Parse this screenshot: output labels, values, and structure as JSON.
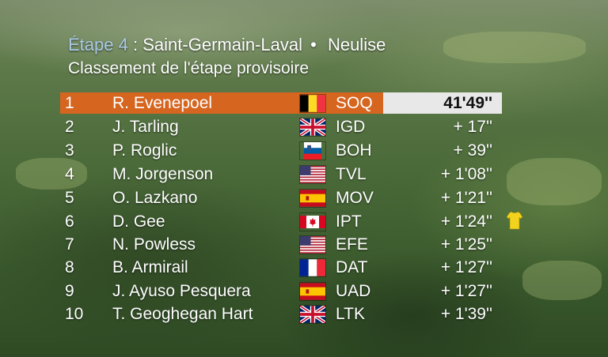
{
  "header": {
    "stage_label": "Étape",
    "stage_number": "4",
    "stage_colon": ":",
    "start": "Saint-Germain-Laval",
    "separator": "•",
    "finish": "Neulise",
    "subtitle": "Classement de l'étape provisoire"
  },
  "standings": [
    {
      "rank": "1",
      "name": "R. Evenepoel",
      "flag": "belgium-flag",
      "team": "SOQ",
      "time": "41'49''",
      "leader": true
    },
    {
      "rank": "2",
      "name": "J. Tarling",
      "flag": "uk-flag",
      "team": "IGD",
      "time": "+ 17''"
    },
    {
      "rank": "3",
      "name": "P. Roglic",
      "flag": "slovenia-flag",
      "team": "BOH",
      "time": "+ 39''"
    },
    {
      "rank": "4",
      "name": "M. Jorgenson",
      "flag": "usa-flag",
      "team": "TVL",
      "time": "+ 1'08''"
    },
    {
      "rank": "5",
      "name": "O. Lazkano",
      "flag": "spain-flag",
      "team": "MOV",
      "time": "+ 1'21''"
    },
    {
      "rank": "6",
      "name": "D. Gee",
      "flag": "canada-flag",
      "team": "IPT",
      "time": "+ 1'24''",
      "yellow_jersey": true
    },
    {
      "rank": "7",
      "name": "N. Powless",
      "flag": "usa-flag",
      "team": "EFE",
      "time": "+ 1'25''"
    },
    {
      "rank": "8",
      "name": "B. Armirail",
      "flag": "france-flag",
      "team": "DAT",
      "time": "+ 1'27''"
    },
    {
      "rank": "9",
      "name": "J. Ayuso Pesquera",
      "flag": "spain-flag",
      "team": "UAD",
      "time": "+ 1'27''"
    },
    {
      "rank": "10",
      "name": "T. Geoghegan Hart",
      "flag": "uk-flag",
      "team": "LTK",
      "time": "+ 1'39''"
    }
  ],
  "colors": {
    "leader_bar": "#d5651f",
    "leader_time_box": "#e8e8e8",
    "stage_label": "#a9cbe6",
    "jersey": "#f2d21c"
  }
}
